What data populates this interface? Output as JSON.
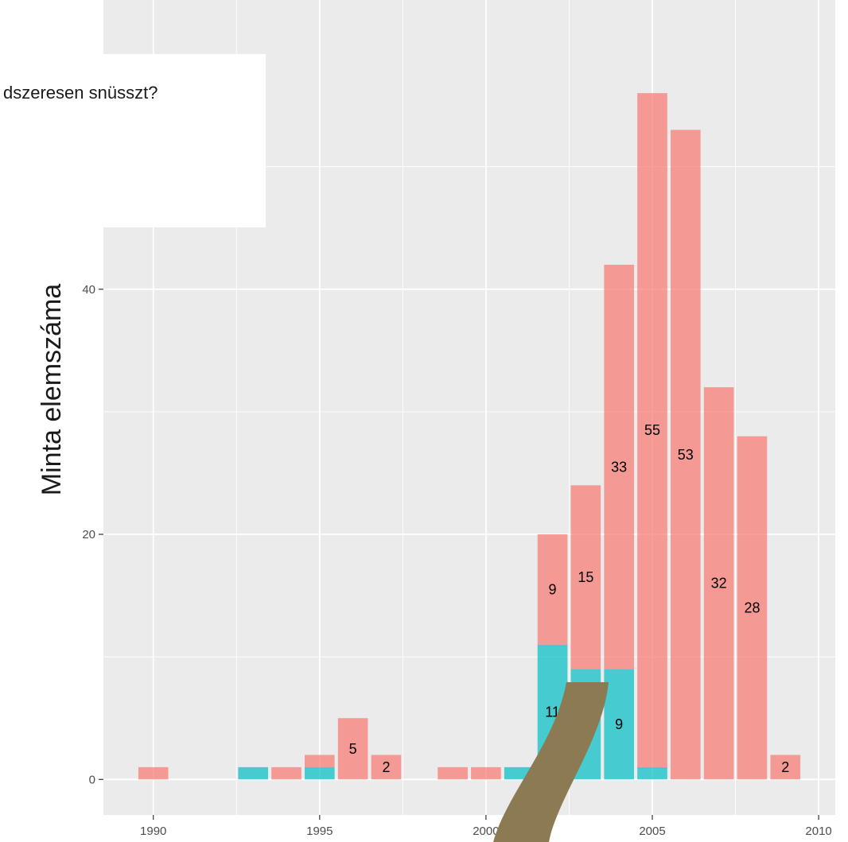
{
  "chart_data": {
    "type": "bar",
    "stacked": true,
    "title": "",
    "xlabel": "",
    "ylabel": "Minta elemszáma",
    "legend": {
      "title_fragment": "dszeresen snüsszt?",
      "placement": "top-left"
    },
    "xlim": [
      1988.5,
      2010.5
    ],
    "ylim": [
      -2.9,
      63.6
    ],
    "x_ticks": [
      1990,
      1995,
      2000,
      2005,
      2010
    ],
    "x_tick_labels": [
      "1990",
      "1995",
      "2000",
      "2005",
      "2010"
    ],
    "y_ticks": [
      0,
      20,
      40
    ],
    "y_tick_labels": [
      "0",
      "20",
      "40"
    ],
    "grid": true,
    "colors": {
      "panel": "#ebebeb",
      "grid": "#ffffff",
      "series_pink": "#f8766d",
      "series_teal": "#00bfc4"
    },
    "series": [
      {
        "color": "#00bfc4",
        "points": [
          {
            "x": 1993,
            "y": 1
          },
          {
            "x": 1995,
            "y": 1
          },
          {
            "x": 2001,
            "y": 1
          },
          {
            "x": 2002,
            "y": 11
          },
          {
            "x": 2003,
            "y": 9
          },
          {
            "x": 2004,
            "y": 9
          },
          {
            "x": 2005,
            "y": 1
          }
        ]
      },
      {
        "color": "#f8766d",
        "points": [
          {
            "x": 1990,
            "y": 1
          },
          {
            "x": 1994,
            "y": 1
          },
          {
            "x": 1995,
            "y": 1
          },
          {
            "x": 1996,
            "y": 5
          },
          {
            "x": 1997,
            "y": 2
          },
          {
            "x": 1999,
            "y": 1
          },
          {
            "x": 2000,
            "y": 1
          },
          {
            "x": 2002,
            "y": 9
          },
          {
            "x": 2003,
            "y": 15
          },
          {
            "x": 2004,
            "y": 33
          },
          {
            "x": 2005,
            "y": 55
          },
          {
            "x": 2006,
            "y": 53
          },
          {
            "x": 2007,
            "y": 32
          },
          {
            "x": 2008,
            "y": 28
          },
          {
            "x": 2009,
            "y": 2
          }
        ]
      }
    ],
    "annotations": [
      {
        "text": "5",
        "x": 1996,
        "y": 2.5
      },
      {
        "text": "2",
        "x": 1997,
        "y": 1
      },
      {
        "text": "11",
        "x": 2002,
        "y": 5.5
      },
      {
        "text": "9",
        "x": 2002,
        "y": 15.5
      },
      {
        "text": "9",
        "x": 2003,
        "y": 4.5
      },
      {
        "text": "15",
        "x": 2003,
        "y": 16.5
      },
      {
        "text": "9",
        "x": 2004,
        "y": 4.5
      },
      {
        "text": "33",
        "x": 2004,
        "y": 25.5
      },
      {
        "text": "55",
        "x": 2005,
        "y": 28.5
      },
      {
        "text": "53",
        "x": 2006,
        "y": 26.5
      },
      {
        "text": "32",
        "x": 2007,
        "y": 16
      },
      {
        "text": "28",
        "x": 2008,
        "y": 14
      },
      {
        "text": "2",
        "x": 2009,
        "y": 1
      }
    ]
  },
  "overlay": {
    "shape_color": "#8b7a52"
  }
}
